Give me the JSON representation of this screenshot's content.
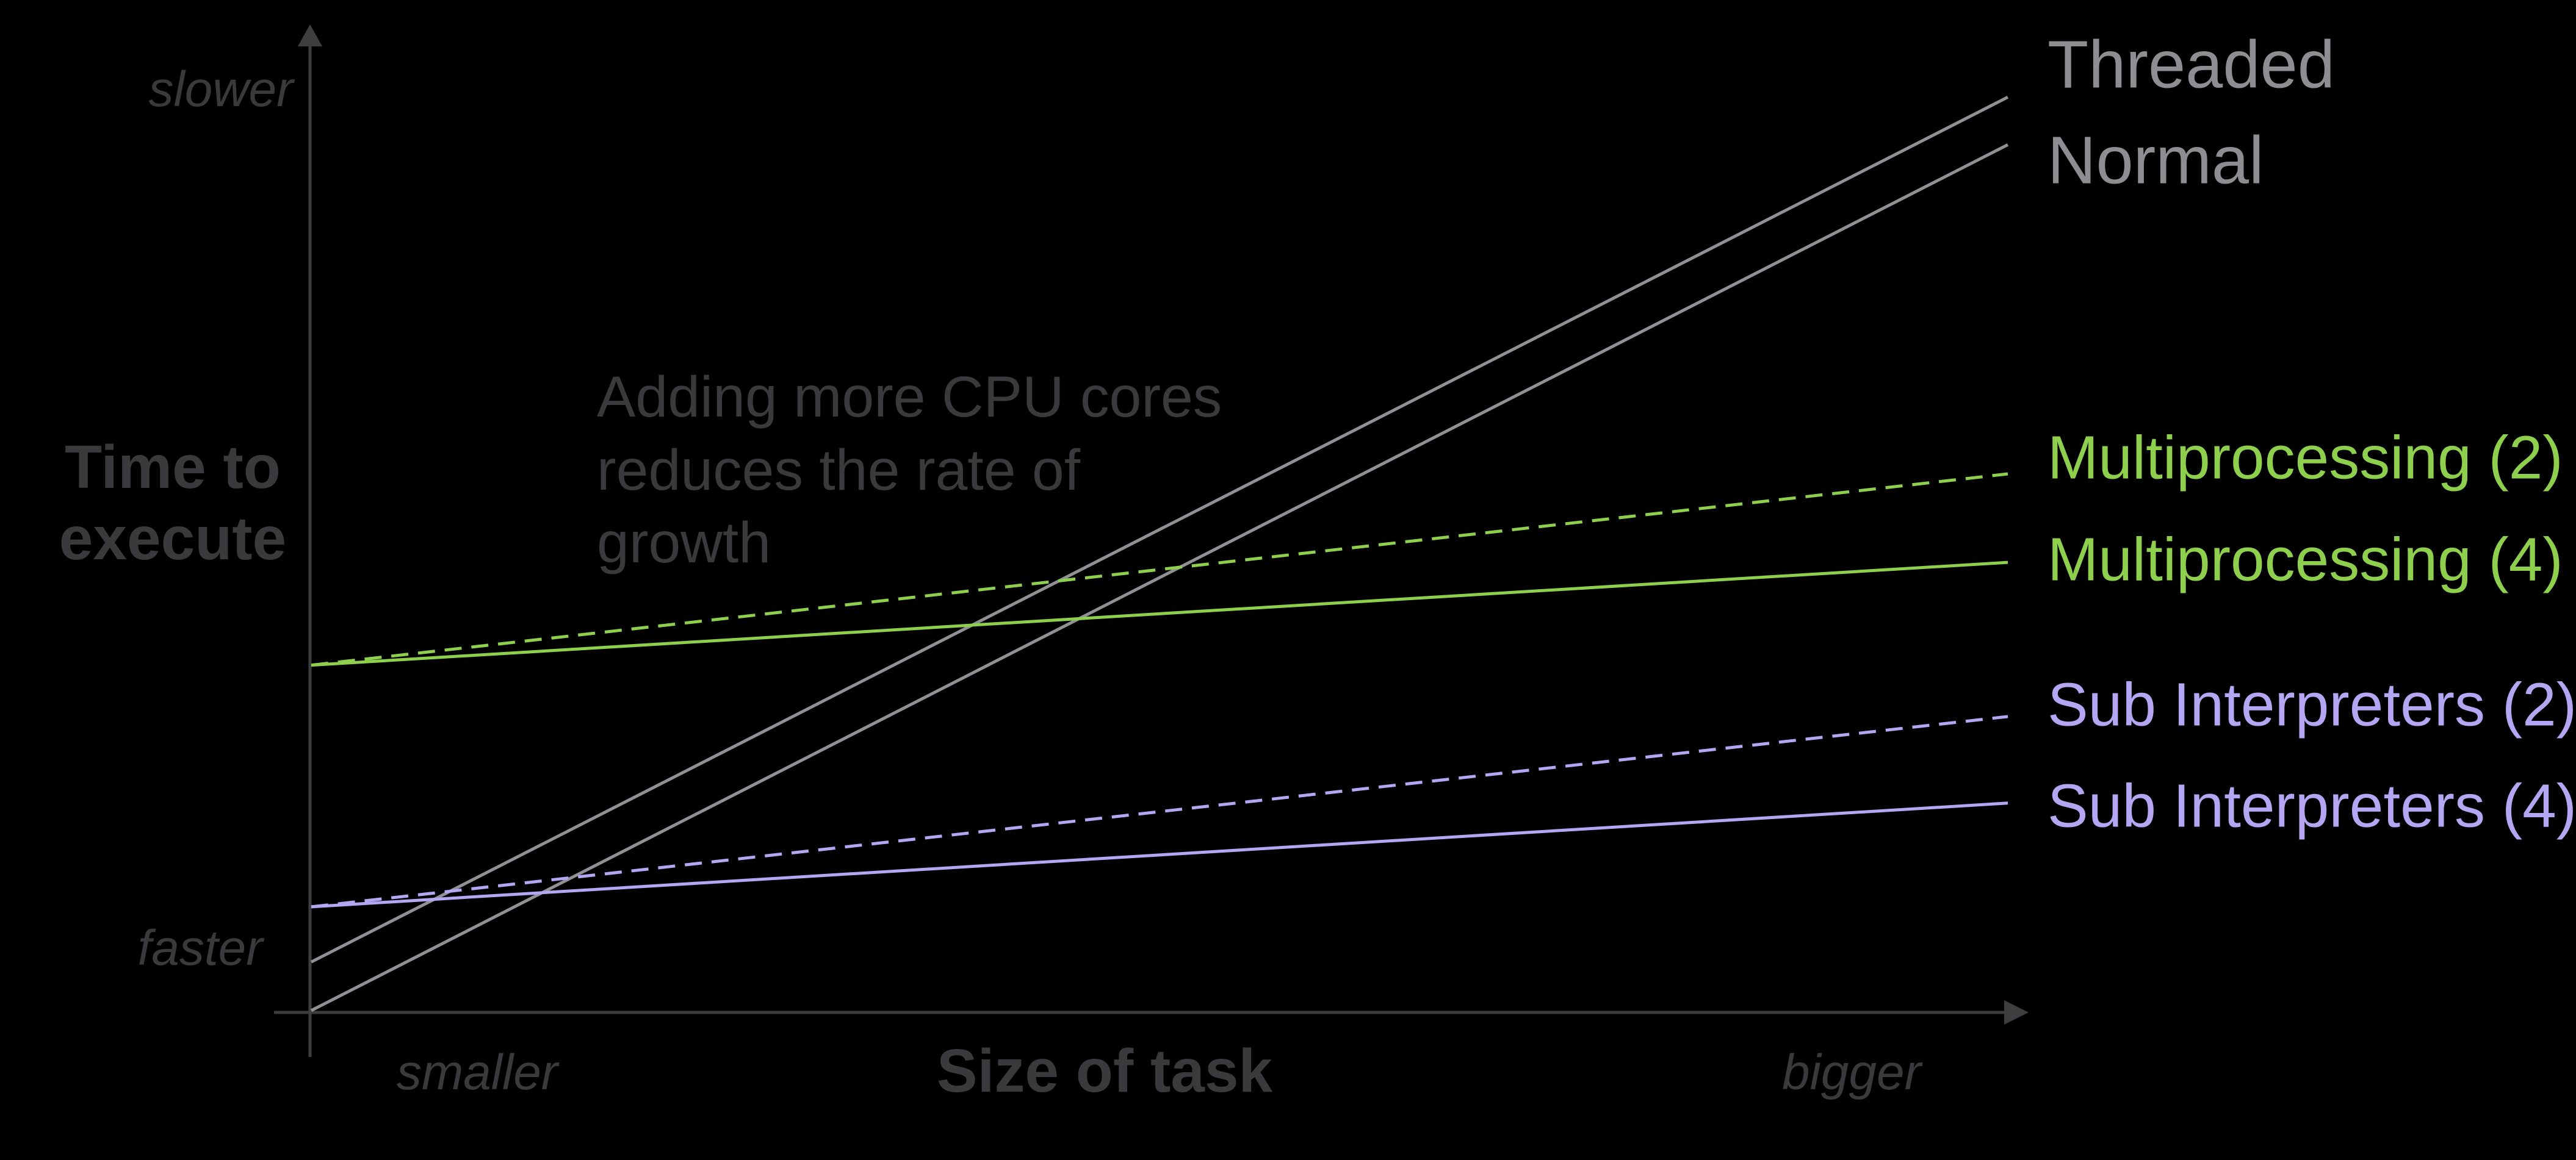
{
  "page": {
    "background_color": "#000000",
    "text_color": "#3a3a3d",
    "axis_color": "#3e3e41"
  },
  "chart_data": {
    "type": "line",
    "title": "",
    "xlabel": "Size of task",
    "ylabel": "Time to\nexecute",
    "x_axis": {
      "label": "Size of task",
      "left_label": "smaller",
      "right_label": "bigger",
      "arrow": true
    },
    "y_axis": {
      "label": "Time to\nexecute",
      "top_label": "slower",
      "bottom_label": "faster",
      "arrow": true
    },
    "grid": false,
    "legend_position": "right",
    "annotation": "Adding more CPU cores\nreduces the rate of\ngrowth",
    "axis_range_note": "qualitative sketch chart; x normalized 0-1 (smaller to bigger), y normalized 0-1 (faster to slower)",
    "series": [
      {
        "name": "Threaded",
        "color": "#919195",
        "dash": "solid",
        "x": [
          0,
          1
        ],
        "y": [
          0.053,
          0.962
        ]
      },
      {
        "name": "Normal",
        "color": "#919195",
        "dash": "solid",
        "x": [
          0,
          1
        ],
        "y": [
          0.002,
          0.912
        ]
      },
      {
        "name": "Multiprocessing (2)",
        "color": "#8ecf4d",
        "dash": "dashed",
        "x": [
          0,
          1
        ],
        "y": [
          0.365,
          0.566
        ]
      },
      {
        "name": "Multiprocessing (4)",
        "color": "#8ecf4d",
        "dash": "solid",
        "x": [
          0,
          1
        ],
        "y": [
          0.365,
          0.473
        ]
      },
      {
        "name": "Sub Interpreters (2)",
        "color": "#b5a6f3",
        "dash": "dashed",
        "x": [
          0,
          1
        ],
        "y": [
          0.111,
          0.311
        ]
      },
      {
        "name": "Sub Interpreters (4)",
        "color": "#b5a6f3",
        "dash": "solid",
        "x": [
          0,
          1
        ],
        "y": [
          0.111,
          0.22
        ]
      }
    ]
  }
}
